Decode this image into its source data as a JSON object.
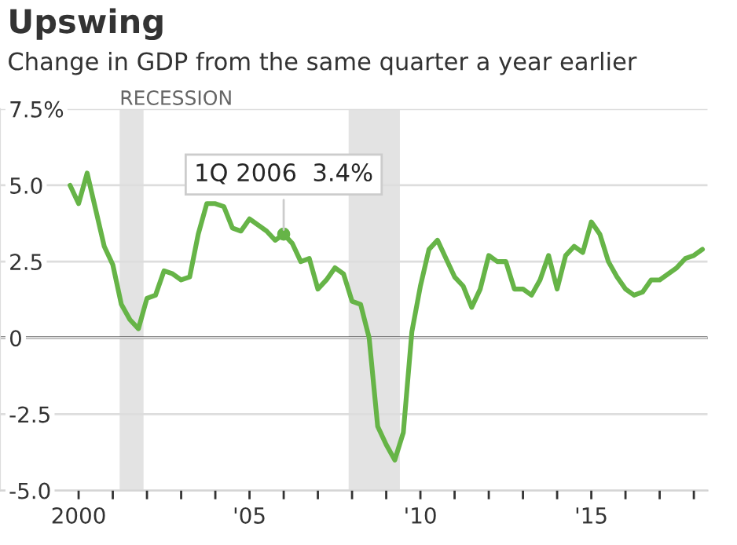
{
  "chart_data": {
    "type": "line",
    "title": "Upswing",
    "subtitle": "Change in GDP from the same quarter a year earlier",
    "x": [
      1999.75,
      2000,
      2000.25,
      2000.5,
      2000.75,
      2001,
      2001.25,
      2001.5,
      2001.75,
      2002,
      2002.25,
      2002.5,
      2002.75,
      2003,
      2003.25,
      2003.5,
      2003.75,
      2004,
      2004.25,
      2004.5,
      2004.75,
      2005,
      2005.25,
      2005.5,
      2005.75,
      2006,
      2006.25,
      2006.5,
      2006.75,
      2007,
      2007.25,
      2007.5,
      2007.75,
      2008,
      2008.25,
      2008.5,
      2008.75,
      2009,
      2009.25,
      2009.5,
      2009.75,
      2010,
      2010.25,
      2010.5,
      2010.75,
      2011,
      2011.25,
      2011.5,
      2011.75,
      2012,
      2012.25,
      2012.5,
      2012.75,
      2013,
      2013.25,
      2013.5,
      2013.75,
      2014,
      2014.25,
      2014.5,
      2014.75,
      2015,
      2015.25,
      2015.5,
      2015.75,
      2016,
      2016.25,
      2016.5,
      2016.75,
      2017,
      2017.25,
      2017.5,
      2017.75,
      2018,
      2018.25
    ],
    "series": [
      {
        "color": "#66b447",
        "values": [
          5.0,
          4.4,
          5.4,
          4.2,
          3.0,
          2.4,
          1.1,
          0.6,
          0.3,
          1.3,
          1.4,
          2.2,
          2.1,
          1.9,
          2.0,
          3.4,
          4.4,
          4.4,
          4.3,
          3.6,
          3.5,
          3.9,
          3.7,
          3.5,
          3.2,
          3.4,
          3.1,
          2.5,
          2.6,
          1.6,
          1.9,
          2.3,
          2.1,
          1.2,
          1.1,
          0.0,
          -2.9,
          -3.5,
          -4.0,
          -3.1,
          0.2,
          1.7,
          2.9,
          3.2,
          2.6,
          2.0,
          1.7,
          1.0,
          1.6,
          2.7,
          2.5,
          2.5,
          1.6,
          1.6,
          1.4,
          1.9,
          2.7,
          1.6,
          2.7,
          3.0,
          2.8,
          3.8,
          3.4,
          2.5,
          2.0,
          1.6,
          1.4,
          1.5,
          1.9,
          1.9,
          2.1,
          2.3,
          2.6,
          2.7,
          2.9
        ]
      }
    ],
    "xlim": [
      1997.7,
      2018.4
    ],
    "ylim": [
      -5,
      7.5
    ],
    "xticks": [
      {
        "value": 2000,
        "label": "2000"
      },
      {
        "value": 2001,
        "label": null
      },
      {
        "value": 2002,
        "label": null
      },
      {
        "value": 2003,
        "label": null
      },
      {
        "value": 2004,
        "label": null
      },
      {
        "value": 2005,
        "label": "'05"
      },
      {
        "value": 2006,
        "label": null
      },
      {
        "value": 2007,
        "label": null
      },
      {
        "value": 2008,
        "label": null
      },
      {
        "value": 2009,
        "label": null
      },
      {
        "value": 2010,
        "label": "'10"
      },
      {
        "value": 2011,
        "label": null
      },
      {
        "value": 2012,
        "label": null
      },
      {
        "value": 2013,
        "label": null
      },
      {
        "value": 2014,
        "label": null
      },
      {
        "value": 2015,
        "label": "'15"
      },
      {
        "value": 2016,
        "label": null
      },
      {
        "value": 2017,
        "label": null
      },
      {
        "value": 2018,
        "label": null
      }
    ],
    "yticks": [
      {
        "value": -5,
        "label": "-5.0"
      },
      -2.5,
      0,
      2.5,
      {
        "value": 5,
        "label": "5.0"
      },
      {
        "value": 7.5,
        "label": "7.5%"
      }
    ],
    "grid": "y",
    "marker": "none",
    "line_style": "solid",
    "bands": [
      {
        "axis": "x",
        "from": 2001.2,
        "to": 2001.9,
        "label": "RECESSION",
        "color": "#e3e3e3"
      },
      {
        "axis": "x",
        "from": 2007.9,
        "to": 2009.4,
        "color": "#e3e3e3"
      }
    ],
    "ref_lines": [
      {
        "axis": "y",
        "value": 0,
        "color": "#222222"
      }
    ],
    "annotations": [
      {
        "text": "1Q 2006  3.4%",
        "x": 2006,
        "y": 3.4
      }
    ]
  }
}
